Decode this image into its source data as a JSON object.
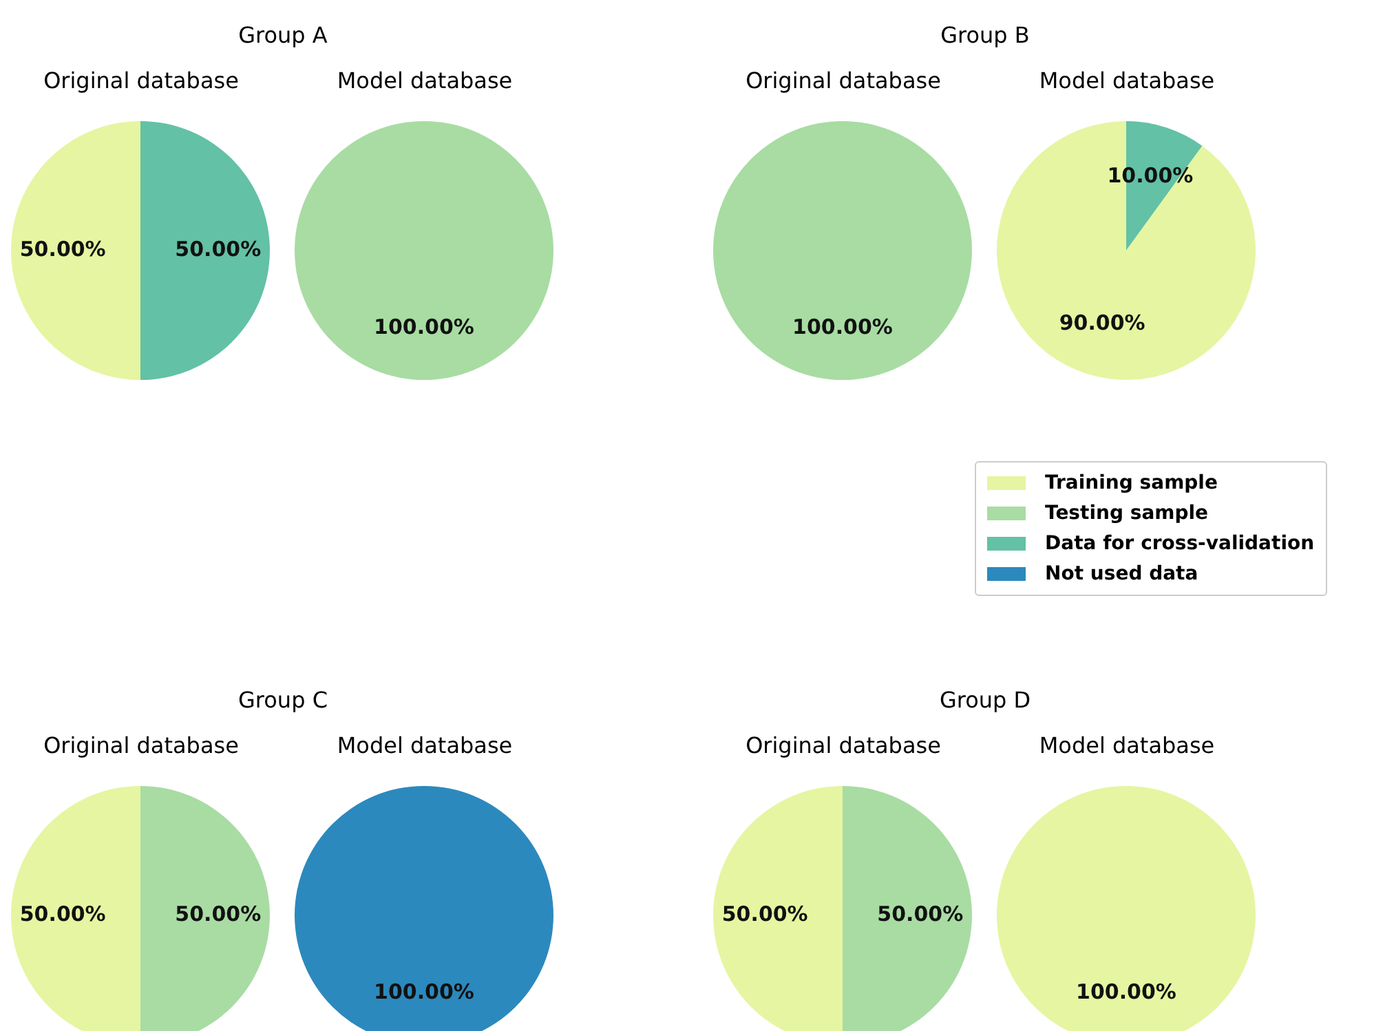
{
  "chart_data": [
    {
      "type": "pie",
      "title": "Group A",
      "subtitle": "Original database",
      "categories": [
        null,
        null
      ],
      "values": [
        50,
        50
      ],
      "colors": [
        "#e6f5a1",
        "#63c1a5"
      ],
      "value_labels": [
        "50.00%",
        "50.00%"
      ]
    },
    {
      "type": "pie",
      "subtitle": "Model database",
      "categories": [
        null
      ],
      "values": [
        100
      ],
      "colors": [
        "#a8dca3"
      ],
      "value_labels": [
        "100.00%"
      ]
    },
    {
      "type": "pie",
      "title": "Group B",
      "subtitle": "Original database",
      "categories": [
        null
      ],
      "values": [
        100
      ],
      "colors": [
        "#a8dca3"
      ],
      "value_labels": [
        "100.00%"
      ]
    },
    {
      "type": "pie",
      "subtitle": "Model database",
      "categories": [
        "Training sample",
        "Testing sample",
        "Data for cross-validation",
        "Not used data"
      ],
      "values": [
        90,
        0,
        10,
        0
      ],
      "colors": [
        "#e6f5a1",
        "#a8dca3",
        "#63c1a5",
        "#2c89bd"
      ],
      "value_labels": [
        "90.00%",
        null,
        "10.00%",
        null
      ],
      "legend": "bottom right"
    },
    {
      "type": "pie",
      "title": "Group C",
      "subtitle": "Original database",
      "categories": [
        null,
        null
      ],
      "values": [
        50,
        50
      ],
      "colors": [
        "#e6f5a1",
        "#a8dca3"
      ],
      "value_labels": [
        "50.00%",
        "50.00%"
      ]
    },
    {
      "type": "pie",
      "subtitle": "Model database",
      "categories": [
        null
      ],
      "values": [
        100
      ],
      "colors": [
        "#2c89bd"
      ],
      "value_labels": [
        "100.00%"
      ]
    },
    {
      "type": "pie",
      "title": "Group D",
      "subtitle": "Original database",
      "categories": [
        null,
        null
      ],
      "values": [
        50,
        50
      ],
      "colors": [
        "#e6f5a1",
        "#a8dca3"
      ],
      "value_labels": [
        "50.00%",
        "50.00%"
      ]
    },
    {
      "type": "pie",
      "subtitle": "Model database",
      "categories": [
        null
      ],
      "values": [
        100
      ],
      "colors": [
        "#e6f5a1"
      ],
      "value_labels": [
        "100.00%"
      ]
    }
  ]
}
